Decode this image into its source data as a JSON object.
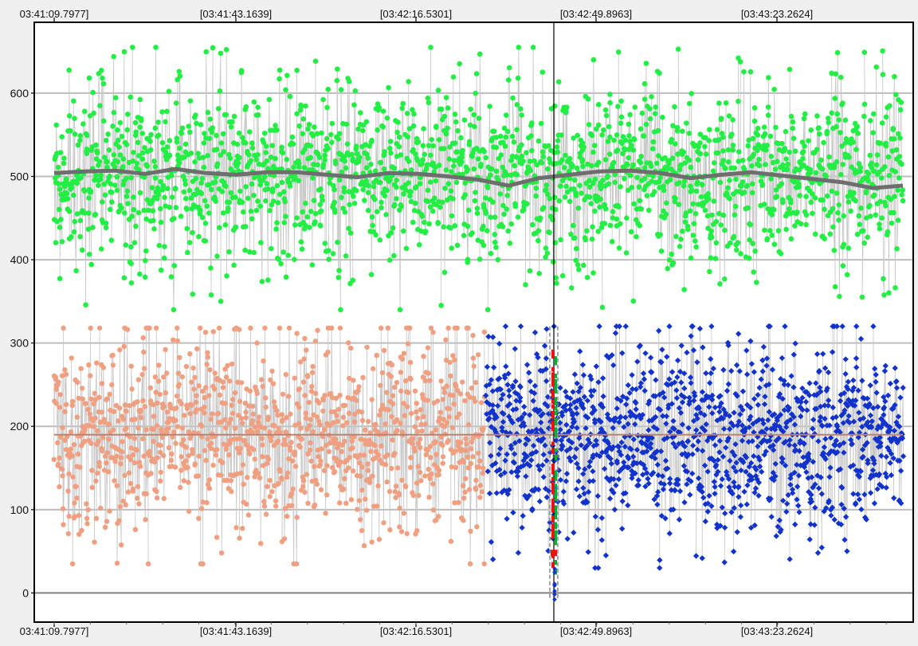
{
  "chart_data": {
    "type": "scatter",
    "title": "",
    "xlabel": "",
    "ylabel": "",
    "x_tick_labels": [
      "03:41:09.7977]",
      "[03:41:43.1639]",
      "[03:42:16.5301]",
      "[03:42:49.8963]",
      "[03:43:23.2624]"
    ],
    "y_ticks": [
      0,
      100,
      200,
      300,
      400,
      500,
      600
    ],
    "ylim": [
      -35,
      685
    ],
    "grid": true,
    "cursor_label": "[03:42:49.8963]",
    "colors": {
      "top_series": "#22ee44",
      "top_trend": "#6e6e6e",
      "lower_before": "#f0a080",
      "lower_after": "#1133cc",
      "lower_trend": "#c08070",
      "connector": "#c8c8c8",
      "grid": "#bdbdbd",
      "zero_line": "#808080",
      "marker_red": "#ee1111",
      "marker_green": "#11aa33"
    },
    "series": [
      {
        "id": "top",
        "mean": 500,
        "spread": 50,
        "min": 340,
        "max": 655,
        "trend": [
          504,
          506,
          507,
          503,
          509,
          504,
          502,
          505,
          505,
          502,
          499,
          504,
          503,
          500,
          496,
          489,
          498,
          502,
          506,
          507,
          504,
          498,
          502,
          505,
          501,
          497,
          493,
          486,
          489
        ]
      },
      {
        "id": "lower-before",
        "mean": 190,
        "spread": 55,
        "min": 35,
        "max": 318,
        "trend": [
          190,
          190
        ]
      },
      {
        "id": "lower-after",
        "mean": 190,
        "spread": 55,
        "min": 30,
        "max": 320,
        "trend": [
          190,
          190
        ]
      }
    ]
  }
}
